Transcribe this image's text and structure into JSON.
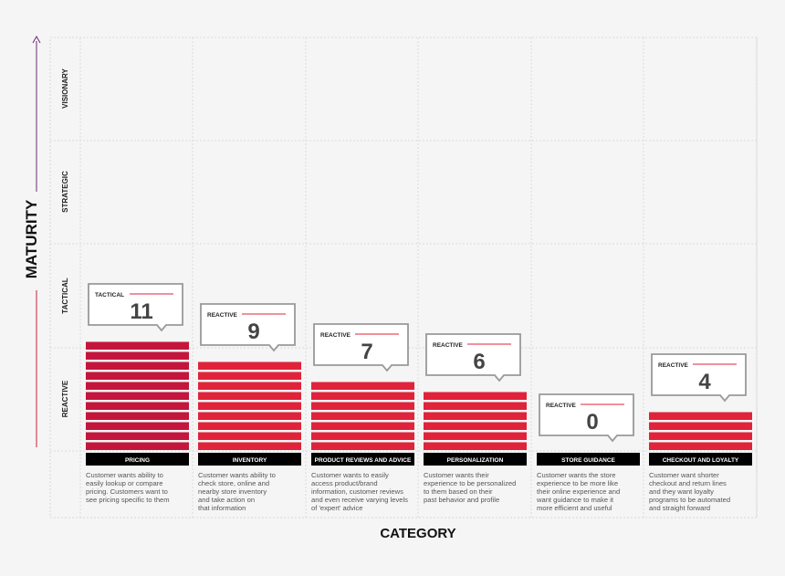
{
  "chart_data": {
    "type": "bar",
    "xlabel": "CATEGORY",
    "ylabel": "MATURITY",
    "maturity_levels": [
      "REACTIVE",
      "TACTICAL",
      "STRATEGIC",
      "VISIONARY"
    ],
    "categories": [
      "PRICING",
      "INVENTORY",
      "PRODUCT REVIEWS AND ADVICE",
      "PERSONALIZATION",
      "STORE GUIDANCE",
      "CHECKOUT AND LOYALTY"
    ],
    "values": [
      11,
      9,
      7,
      6,
      0,
      4
    ],
    "value_labels": [
      "11",
      "9",
      "7",
      "6",
      "0",
      "4"
    ],
    "maturity": [
      "TACTICAL",
      "REACTIVE",
      "REACTIVE",
      "REACTIVE",
      "REACTIVE",
      "REACTIVE"
    ],
    "descriptions": [
      [
        "Customer wants ability to",
        "easily lookup or compare",
        "pricing. Customers want to",
        "see pricing specific to them"
      ],
      [
        "Customer wants ability to",
        "check store, online and",
        "nearby store inventory",
        "and take action on",
        "that information"
      ],
      [
        "Customer wants to easily",
        "access product/brand",
        "information, customer reviews",
        "and even receive varying levels",
        "of 'expert' advice"
      ],
      [
        "Customer wants their",
        "experience to be personalized",
        "to them based on their",
        "past behavior and profile"
      ],
      [
        "Customer wants the store",
        "experience to be more like",
        "their online experience and",
        "want guidance to make it",
        "more efficient and useful"
      ],
      [
        "Customer want shorter",
        "checkout and return lines",
        "and they want loyalty",
        "programs to be automated",
        "and straight forward"
      ]
    ],
    "colors": {
      "bar_tactical": "#c4163c",
      "bar_reactive": "#e0233a",
      "label_bar": "#000000",
      "axis": "#6b2a73",
      "callout_line": "#e0233a"
    },
    "grid": true
  }
}
